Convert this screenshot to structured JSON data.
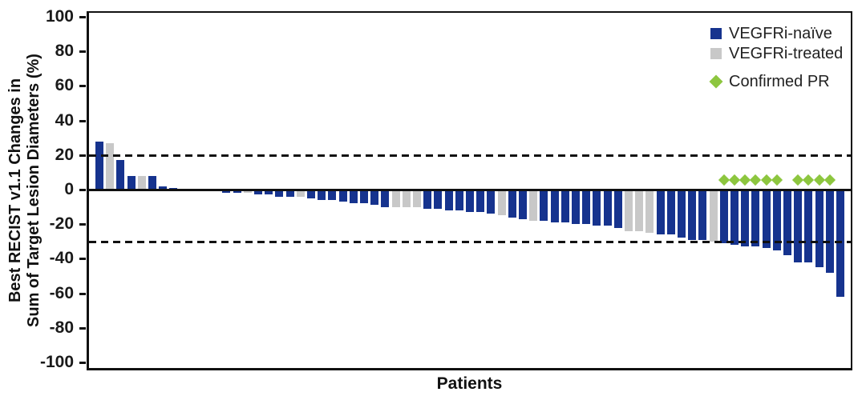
{
  "chart_data": {
    "type": "bar",
    "subtype": "waterfall",
    "title": "",
    "xlabel": "Patients",
    "ylabel_lines": [
      "Best RECIST v1.1 Changes in",
      "Sum of Target Lesion Diameters (%)"
    ],
    "ylim": [
      -100,
      100
    ],
    "ytick_values": [
      100,
      80,
      60,
      40,
      20,
      0,
      -20,
      -40,
      -60,
      -80,
      -100
    ],
    "ytick_labels": [
      "100",
      "80",
      "60",
      "40",
      "20",
      "0",
      "-20",
      "-40",
      "-60",
      "-80",
      "-100"
    ],
    "grid": false,
    "reference_lines": [
      {
        "y": 20,
        "style": "dashed"
      },
      {
        "y": -30,
        "style": "dashed"
      }
    ],
    "legend_position": "top-right",
    "legend": {
      "items": [
        {
          "label": "VEGFRi-naïve",
          "swatch": "square",
          "color": "#16338e"
        },
        {
          "label": "VEGFRi-treated",
          "swatch": "square",
          "color": "#c8c8c8"
        },
        {
          "label": "Confirmed PR",
          "swatch": "diamond",
          "color": "#8dc63f"
        }
      ]
    },
    "colors": {
      "naive_bar": "#16338e",
      "treated_bar": "#c8c8c8",
      "confirmed_pr_marker": "#8dc63f",
      "axis": "#111111"
    },
    "patients": {
      "count": 71,
      "values": [
        28,
        27,
        17,
        8,
        8,
        8,
        2,
        1,
        0,
        0,
        -1,
        -1,
        -2,
        -2,
        -2,
        -3,
        -3,
        -4,
        -4,
        -4,
        -5,
        -6,
        -6,
        -7,
        -8,
        -8,
        -9,
        -10,
        -10,
        -10,
        -10,
        -11,
        -11,
        -12,
        -12,
        -13,
        -13,
        -14,
        -15,
        -16,
        -17,
        -18,
        -18,
        -19,
        -19,
        -20,
        -20,
        -21,
        -21,
        -22,
        -24,
        -24,
        -25,
        -26,
        -26,
        -28,
        -29,
        -29,
        -30,
        -31,
        -32,
        -33,
        -33,
        -34,
        -35,
        -38,
        -42,
        -42,
        -45,
        -48,
        -62
      ],
      "treated_indices_1based": [
        2,
        5,
        15,
        20,
        29,
        30,
        31,
        39,
        42,
        51,
        52,
        53,
        59
      ],
      "confirmed_pr_indices_1based": [
        60,
        61,
        62,
        63,
        64,
        65,
        67,
        68,
        69,
        70
      ]
    }
  }
}
